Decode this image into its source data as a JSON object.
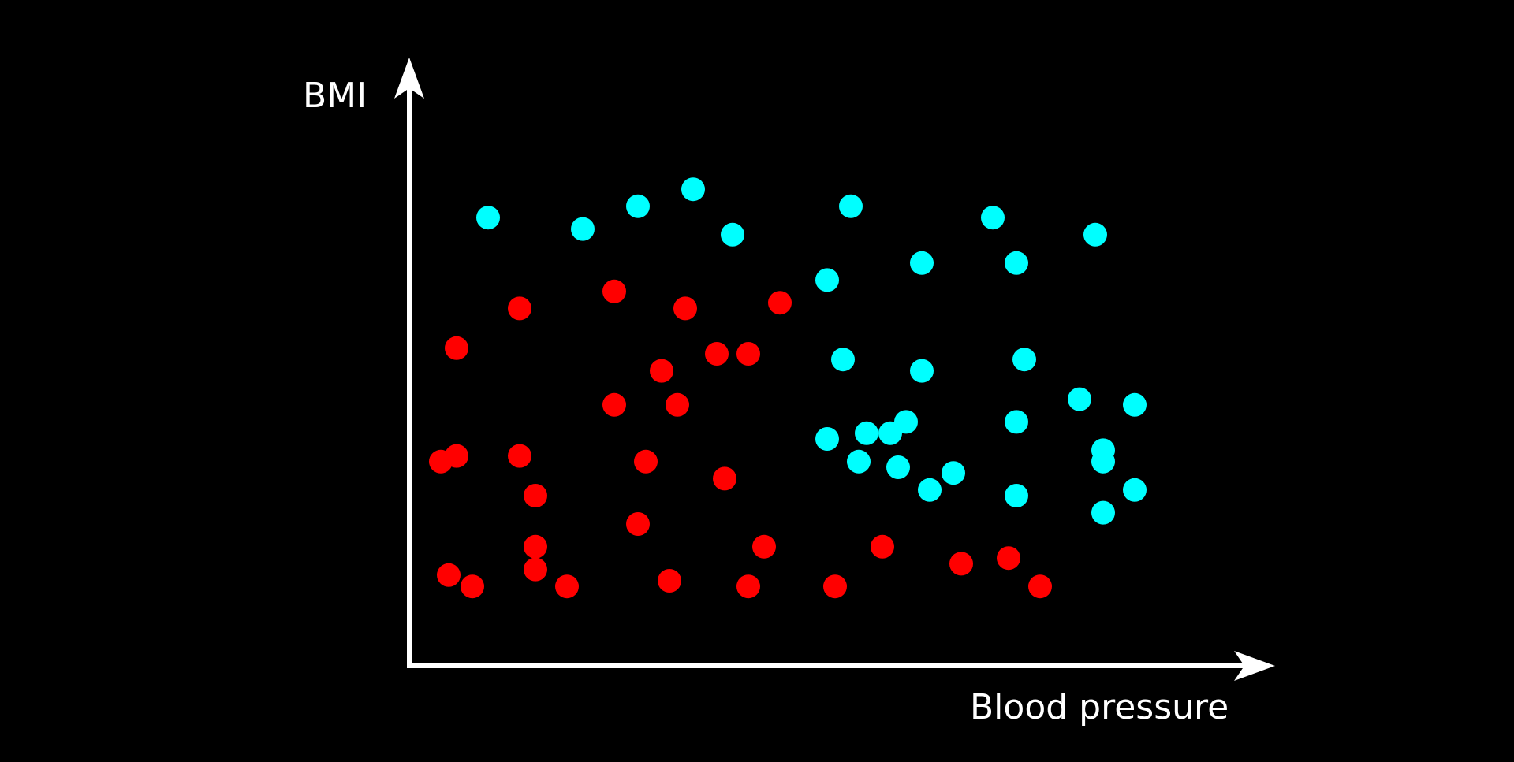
{
  "chart_data": {
    "type": "scatter",
    "xlabel": "Blood pressure",
    "ylabel": "BMI",
    "grid": false,
    "xlim": [
      0,
      100
    ],
    "ylim": [
      0,
      100
    ],
    "series": [
      {
        "color": "#ff0000",
        "points": [
          [
            6,
            56
          ],
          [
            14,
            63
          ],
          [
            26,
            66
          ],
          [
            35,
            63
          ],
          [
            47,
            64
          ],
          [
            26,
            46
          ],
          [
            6,
            37
          ],
          [
            14,
            37
          ],
          [
            32,
            52
          ],
          [
            39,
            55
          ],
          [
            34,
            46
          ],
          [
            43,
            55
          ],
          [
            4,
            36
          ],
          [
            16,
            30
          ],
          [
            30,
            36
          ],
          [
            40,
            33
          ],
          [
            16,
            21
          ],
          [
            29,
            25
          ],
          [
            16,
            17
          ],
          [
            45,
            21
          ],
          [
            5,
            16
          ],
          [
            60,
            21
          ],
          [
            76,
            19
          ],
          [
            8,
            14
          ],
          [
            20,
            14
          ],
          [
            33,
            15
          ],
          [
            43,
            14
          ],
          [
            54,
            14
          ],
          [
            70,
            18
          ],
          [
            80,
            14
          ]
        ]
      },
      {
        "color": "#00ffff",
        "points": [
          [
            10,
            79
          ],
          [
            22,
            77
          ],
          [
            29,
            81
          ],
          [
            36,
            84
          ],
          [
            41,
            76
          ],
          [
            56,
            81
          ],
          [
            53,
            68
          ],
          [
            65,
            71
          ],
          [
            74,
            79
          ],
          [
            77,
            71
          ],
          [
            87,
            76
          ],
          [
            55,
            54
          ],
          [
            65,
            52
          ],
          [
            78,
            54
          ],
          [
            58,
            41
          ],
          [
            61,
            41
          ],
          [
            57,
            36
          ],
          [
            62,
            35
          ],
          [
            63,
            43
          ],
          [
            77,
            43
          ],
          [
            85,
            47
          ],
          [
            92,
            46
          ],
          [
            88,
            38
          ],
          [
            77,
            30
          ],
          [
            88,
            27
          ],
          [
            53,
            40
          ],
          [
            66,
            31
          ],
          [
            69,
            34
          ],
          [
            92,
            31
          ],
          [
            88,
            36
          ]
        ]
      }
    ]
  }
}
